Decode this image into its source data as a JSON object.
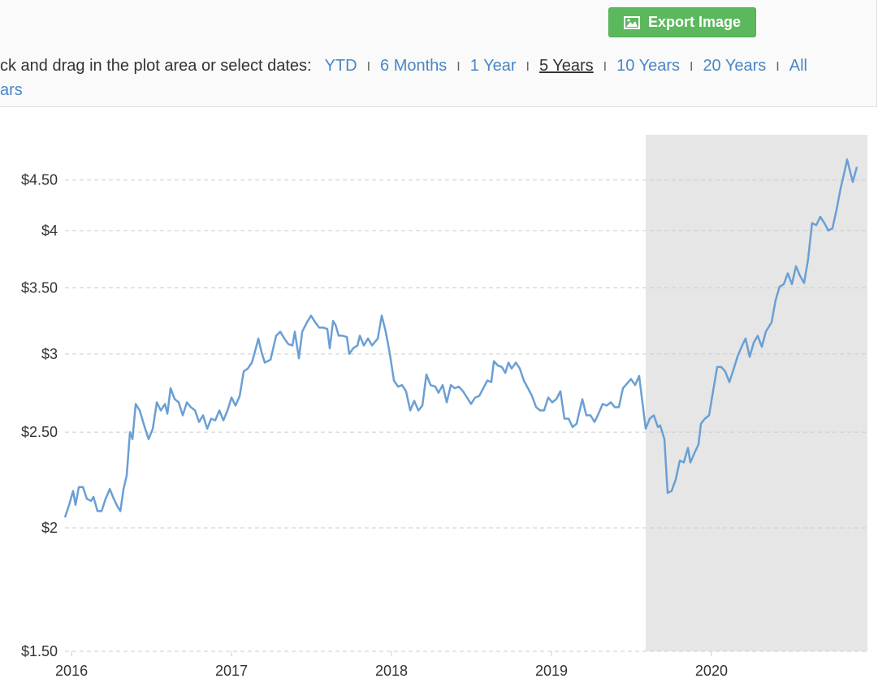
{
  "toolbar": {
    "export_button": "Export Image",
    "prompt": "ck and drag in the plot area or select dates:",
    "separator": "I",
    "ranges": [
      "YTD",
      "6 Months",
      "1 Year",
      "5 Years",
      "10 Years",
      "20 Years",
      "All"
    ],
    "selected_range": 3,
    "overflow": "ars"
  },
  "chart_data": {
    "type": "line",
    "log_y": true,
    "grid": true,
    "color": "#6a9fd4",
    "highlight_color": "#e6e6e6",
    "highlight_x": [
      2019.589,
      2020.975
    ],
    "xlim": [
      2015.959,
      2020.975
    ],
    "xticks": [
      2016,
      2017,
      2018,
      2019,
      2020
    ],
    "ylim": [
      1.5,
      5
    ],
    "yticks": [
      {
        "value": 1.5,
        "label": "$1.50"
      },
      {
        "value": 2,
        "label": "$2"
      },
      {
        "value": 2.5,
        "label": "$2.50"
      },
      {
        "value": 3,
        "label": "$3"
      },
      {
        "value": 3.5,
        "label": "$3.50"
      },
      {
        "value": 4,
        "label": "$4"
      },
      {
        "value": 4.5,
        "label": "$4.50"
      }
    ],
    "x": [
      2015.959,
      2015.985,
      2016.01,
      2016.025,
      2016.046,
      2016.071,
      2016.096,
      2016.122,
      2016.137,
      2016.162,
      2016.188,
      2016.213,
      2016.239,
      2016.264,
      2016.289,
      2016.305,
      2016.325,
      2016.345,
      2016.365,
      2016.381,
      2016.401,
      2016.426,
      2016.457,
      2016.482,
      2016.508,
      2016.533,
      2016.558,
      2016.584,
      2016.599,
      2016.619,
      2016.645,
      2016.67,
      2016.695,
      2016.721,
      2016.746,
      2016.772,
      2016.797,
      2016.822,
      2016.848,
      2016.873,
      2016.898,
      2016.924,
      2016.949,
      2016.975,
      2017.0,
      2017.025,
      2017.051,
      2017.076,
      2017.102,
      2017.127,
      2017.152,
      2017.168,
      2017.188,
      2017.208,
      2017.244,
      2017.279,
      2017.305,
      2017.33,
      2017.355,
      2017.381,
      2017.396,
      2017.421,
      2017.442,
      2017.472,
      2017.497,
      2017.523,
      2017.548,
      2017.574,
      2017.599,
      2017.614,
      2017.635,
      2017.65,
      2017.67,
      2017.695,
      2017.721,
      2017.736,
      2017.761,
      2017.787,
      2017.802,
      2017.827,
      2017.853,
      2017.878,
      2017.914,
      2017.939,
      2017.964,
      2017.99,
      2018.015,
      2018.041,
      2018.066,
      2018.091,
      2018.117,
      2018.142,
      2018.168,
      2018.193,
      2018.218,
      2018.244,
      2018.274,
      2018.294,
      2018.32,
      2018.345,
      2018.371,
      2018.396,
      2018.421,
      2018.447,
      2018.472,
      2018.497,
      2018.523,
      2018.548,
      2018.574,
      2018.599,
      2018.624,
      2018.64,
      2018.665,
      2018.69,
      2018.711,
      2018.731,
      2018.751,
      2018.777,
      2018.802,
      2018.827,
      2018.853,
      2018.878,
      2018.904,
      2018.929,
      2018.954,
      2018.98,
      2019.005,
      2019.03,
      2019.056,
      2019.081,
      2019.107,
      2019.132,
      2019.157,
      2019.193,
      2019.218,
      2019.244,
      2019.269,
      2019.294,
      2019.32,
      2019.345,
      2019.371,
      2019.396,
      2019.421,
      2019.447,
      2019.472,
      2019.497,
      2019.523,
      2019.548,
      2019.589,
      2019.614,
      2019.64,
      2019.665,
      2019.68,
      2019.706,
      2019.726,
      2019.751,
      2019.777,
      2019.802,
      2019.827,
      2019.853,
      2019.868,
      2019.893,
      2019.919,
      2019.934,
      2019.959,
      2019.985,
      2020.01,
      2020.036,
      2020.061,
      2020.086,
      2020.112,
      2020.137,
      2020.162,
      2020.188,
      2020.213,
      2020.239,
      2020.264,
      2020.289,
      2020.315,
      2020.34,
      2020.376,
      2020.401,
      2020.426,
      2020.452,
      2020.477,
      2020.503,
      2020.528,
      2020.553,
      2020.579,
      2020.604,
      2020.629,
      2020.655,
      2020.68,
      2020.706,
      2020.731,
      2020.756,
      2020.782,
      2020.807,
      2020.832,
      2020.848,
      2020.883,
      2020.909
    ],
    "values": [
      2.05,
      2.11,
      2.18,
      2.11,
      2.2,
      2.2,
      2.14,
      2.13,
      2.15,
      2.08,
      2.08,
      2.14,
      2.19,
      2.14,
      2.1,
      2.08,
      2.19,
      2.26,
      2.5,
      2.46,
      2.67,
      2.63,
      2.53,
      2.46,
      2.52,
      2.68,
      2.63,
      2.67,
      2.61,
      2.77,
      2.7,
      2.68,
      2.6,
      2.68,
      2.65,
      2.63,
      2.56,
      2.6,
      2.52,
      2.58,
      2.57,
      2.63,
      2.57,
      2.63,
      2.71,
      2.66,
      2.72,
      2.88,
      2.9,
      2.94,
      3.04,
      3.11,
      3.01,
      2.94,
      2.96,
      3.13,
      3.16,
      3.11,
      3.07,
      3.06,
      3.16,
      2.97,
      3.16,
      3.23,
      3.28,
      3.23,
      3.19,
      3.19,
      3.18,
      3.04,
      3.24,
      3.21,
      3.13,
      3.13,
      3.12,
      3.0,
      3.04,
      3.06,
      3.13,
      3.06,
      3.11,
      3.06,
      3.11,
      3.28,
      3.16,
      3.0,
      2.82,
      2.78,
      2.79,
      2.75,
      2.63,
      2.69,
      2.63,
      2.66,
      2.86,
      2.79,
      2.78,
      2.74,
      2.79,
      2.68,
      2.79,
      2.77,
      2.78,
      2.75,
      2.71,
      2.67,
      2.71,
      2.72,
      2.77,
      2.82,
      2.81,
      2.95,
      2.92,
      2.91,
      2.87,
      2.94,
      2.9,
      2.94,
      2.9,
      2.82,
      2.77,
      2.72,
      2.65,
      2.63,
      2.63,
      2.71,
      2.68,
      2.7,
      2.75,
      2.58,
      2.58,
      2.53,
      2.55,
      2.7,
      2.6,
      2.6,
      2.56,
      2.61,
      2.67,
      2.66,
      2.68,
      2.65,
      2.65,
      2.77,
      2.8,
      2.83,
      2.79,
      2.85,
      2.52,
      2.58,
      2.6,
      2.53,
      2.54,
      2.46,
      2.17,
      2.18,
      2.24,
      2.34,
      2.33,
      2.41,
      2.33,
      2.38,
      2.43,
      2.55,
      2.58,
      2.6,
      2.75,
      2.91,
      2.91,
      2.88,
      2.81,
      2.89,
      2.98,
      3.05,
      3.11,
      2.98,
      3.08,
      3.13,
      3.05,
      3.16,
      3.23,
      3.4,
      3.51,
      3.53,
      3.62,
      3.53,
      3.68,
      3.6,
      3.54,
      3.74,
      4.07,
      4.05,
      4.13,
      4.07,
      4.0,
      4.02,
      4.2,
      4.41,
      4.59,
      4.72,
      4.48,
      4.64
    ]
  }
}
